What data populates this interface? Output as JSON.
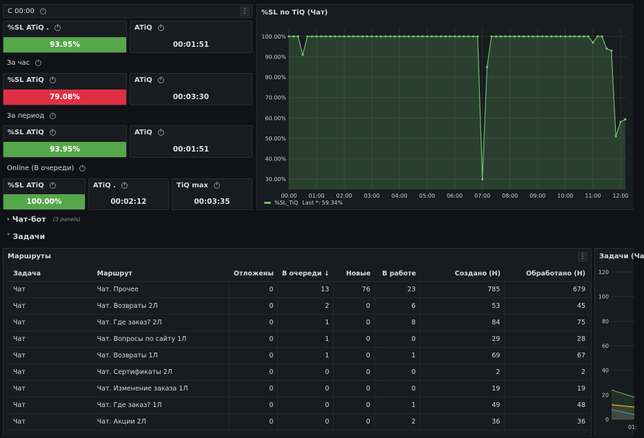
{
  "row_c": {
    "title": "С 00:00"
  },
  "row_hour": {
    "title": "За час"
  },
  "row_period": {
    "title": "За период"
  },
  "row_online": {
    "title": "Online (В очереди)"
  },
  "stats": {
    "c_sl": {
      "title": "%SL ATiQ .",
      "value": "93.95%",
      "color": "#56a64b"
    },
    "c_atiq": {
      "title": "ATiQ",
      "value": "00:01:51"
    },
    "h_sl": {
      "title": "%SL ATiQ",
      "value": "79.08%",
      "color": "#e02f44"
    },
    "h_atiq": {
      "title": "ATiQ",
      "value": "00:03:30"
    },
    "p_sl": {
      "title": "%SL ATiQ",
      "value": "93.95%",
      "color": "#56a64b"
    },
    "p_atiq": {
      "title": "ATiQ",
      "value": "00:01:51"
    },
    "o_sl": {
      "title": "%SL ATiQ",
      "value": "100.00%",
      "color": "#56a64b"
    },
    "o_atiq": {
      "title": "ATiQ .",
      "value": "00:02:12"
    },
    "o_max": {
      "title": "TiQ max",
      "value": "00:03:35"
    }
  },
  "sl_chart": {
    "title": "%SL по TiQ (Чат)",
    "legend": "%SL_TiQ",
    "legend_last": "Last *: 59.34%"
  },
  "chart_data": [
    {
      "type": "line",
      "title": "%SL по TiQ (Чат)",
      "y_ticks": [
        "100.00%",
        "90.00%",
        "80.00%",
        "70.00%",
        "60.00%",
        "50.00%",
        "40.00%",
        "30.00%"
      ],
      "x_ticks": [
        "00:00",
        "01:00",
        "02:00",
        "03:00",
        "04:00",
        "05:00",
        "06:00",
        "07:00",
        "08:00",
        "09:00",
        "10:00",
        "11:00",
        "12:00"
      ],
      "ylim": [
        25,
        104
      ],
      "xlim": [
        0,
        12.2
      ],
      "series": [
        {
          "name": "%SL_TiQ",
          "color": "#73bf69",
          "x": [
            0,
            0.17,
            0.33,
            0.5,
            0.67,
            0.83,
            1,
            1.17,
            1.33,
            1.5,
            1.67,
            1.83,
            2,
            2.17,
            2.33,
            2.5,
            2.67,
            2.83,
            3,
            3.17,
            3.33,
            3.5,
            3.67,
            3.83,
            4,
            4.17,
            4.33,
            4.5,
            4.67,
            4.83,
            5,
            5.17,
            5.33,
            5.5,
            5.67,
            5.83,
            6,
            6.17,
            6.33,
            6.5,
            6.67,
            6.83,
            7,
            7.17,
            7.33,
            7.5,
            7.67,
            7.83,
            8,
            8.17,
            8.33,
            8.5,
            8.67,
            8.83,
            9,
            9.17,
            9.33,
            9.5,
            9.67,
            9.83,
            10,
            10.17,
            10.33,
            10.5,
            10.67,
            10.83,
            11,
            11.17,
            11.33,
            11.5,
            11.67,
            11.83,
            12,
            12.17
          ],
          "values": [
            100,
            100,
            100,
            91,
            100,
            100,
            100,
            100,
            100,
            100,
            100,
            100,
            100,
            100,
            100,
            100,
            100,
            100,
            100,
            100,
            100,
            100,
            100,
            100,
            100,
            100,
            100,
            100,
            100,
            100,
            100,
            100,
            100,
            100,
            100,
            100,
            100,
            100,
            100,
            100,
            100,
            100,
            30,
            85,
            100,
            100,
            100,
            100,
            100,
            100,
            100,
            100,
            100,
            100,
            100,
            100,
            100,
            100,
            100,
            100,
            100,
            100,
            100,
            100,
            100,
            100,
            97,
            100,
            100,
            94,
            93,
            51,
            58,
            59.34
          ]
        }
      ]
    },
    {
      "type": "line",
      "title": "Задачи (Ча",
      "y_ticks": [
        "120",
        "100",
        "80",
        "60",
        "40",
        "20",
        "0"
      ],
      "x_ticks": [
        "01:"
      ],
      "ylim": [
        0,
        120
      ],
      "series": [
        {
          "name": "",
          "color": "#73bf69",
          "x": [
            0,
            1
          ],
          "values": [
            24,
            18
          ]
        },
        {
          "name": "",
          "color": "#fade2a",
          "x": [
            0,
            1
          ],
          "values": [
            12,
            10
          ]
        },
        {
          "name": "",
          "color": "#5794f2",
          "x": [
            0,
            1
          ],
          "values": [
            8,
            4
          ]
        }
      ]
    }
  ],
  "chatbot": {
    "label": "Чат-бот",
    "sub": "(3 panels)"
  },
  "tasks": {
    "label": "Задачи"
  },
  "routes": {
    "title": "Маршруты",
    "columns": [
      "Задача",
      "Маршрут",
      "Отложены",
      "В очереди",
      "Новые",
      "В работе",
      "Создано (Н)",
      "Обработано (Н)"
    ],
    "sort_indicator": "↓",
    "rows": [
      [
        "Чат",
        "Чат. Прочее",
        "0",
        "13",
        "76",
        "23",
        "785",
        "679"
      ],
      [
        "Чат",
        "Чат. Возвраты 2Л",
        "0",
        "2",
        "0",
        "6",
        "53",
        "45"
      ],
      [
        "Чат",
        "Чат. Где заказ? 2Л",
        "0",
        "1",
        "0",
        "8",
        "84",
        "75"
      ],
      [
        "Чат",
        "Чат. Вопросы по сайту 1Л",
        "0",
        "1",
        "0",
        "0",
        "29",
        "28"
      ],
      [
        "Чат",
        "Чат. Возвраты 1Л",
        "0",
        "1",
        "0",
        "1",
        "69",
        "67"
      ],
      [
        "Чат",
        "Чат. Сертификаты 2Л",
        "0",
        "0",
        "0",
        "0",
        "2",
        "2"
      ],
      [
        "Чат",
        "Чат. Изменение заказа 1Л",
        "0",
        "0",
        "0",
        "0",
        "19",
        "19"
      ],
      [
        "Чат",
        "Чат. Где заказ? 1Л",
        "0",
        "0",
        "0",
        "1",
        "49",
        "48"
      ],
      [
        "Чат",
        "Чат. Акции 2Л",
        "0",
        "0",
        "0",
        "2",
        "36",
        "36"
      ]
    ]
  },
  "tasks_chart": {
    "title": "Задачи (Ча"
  }
}
